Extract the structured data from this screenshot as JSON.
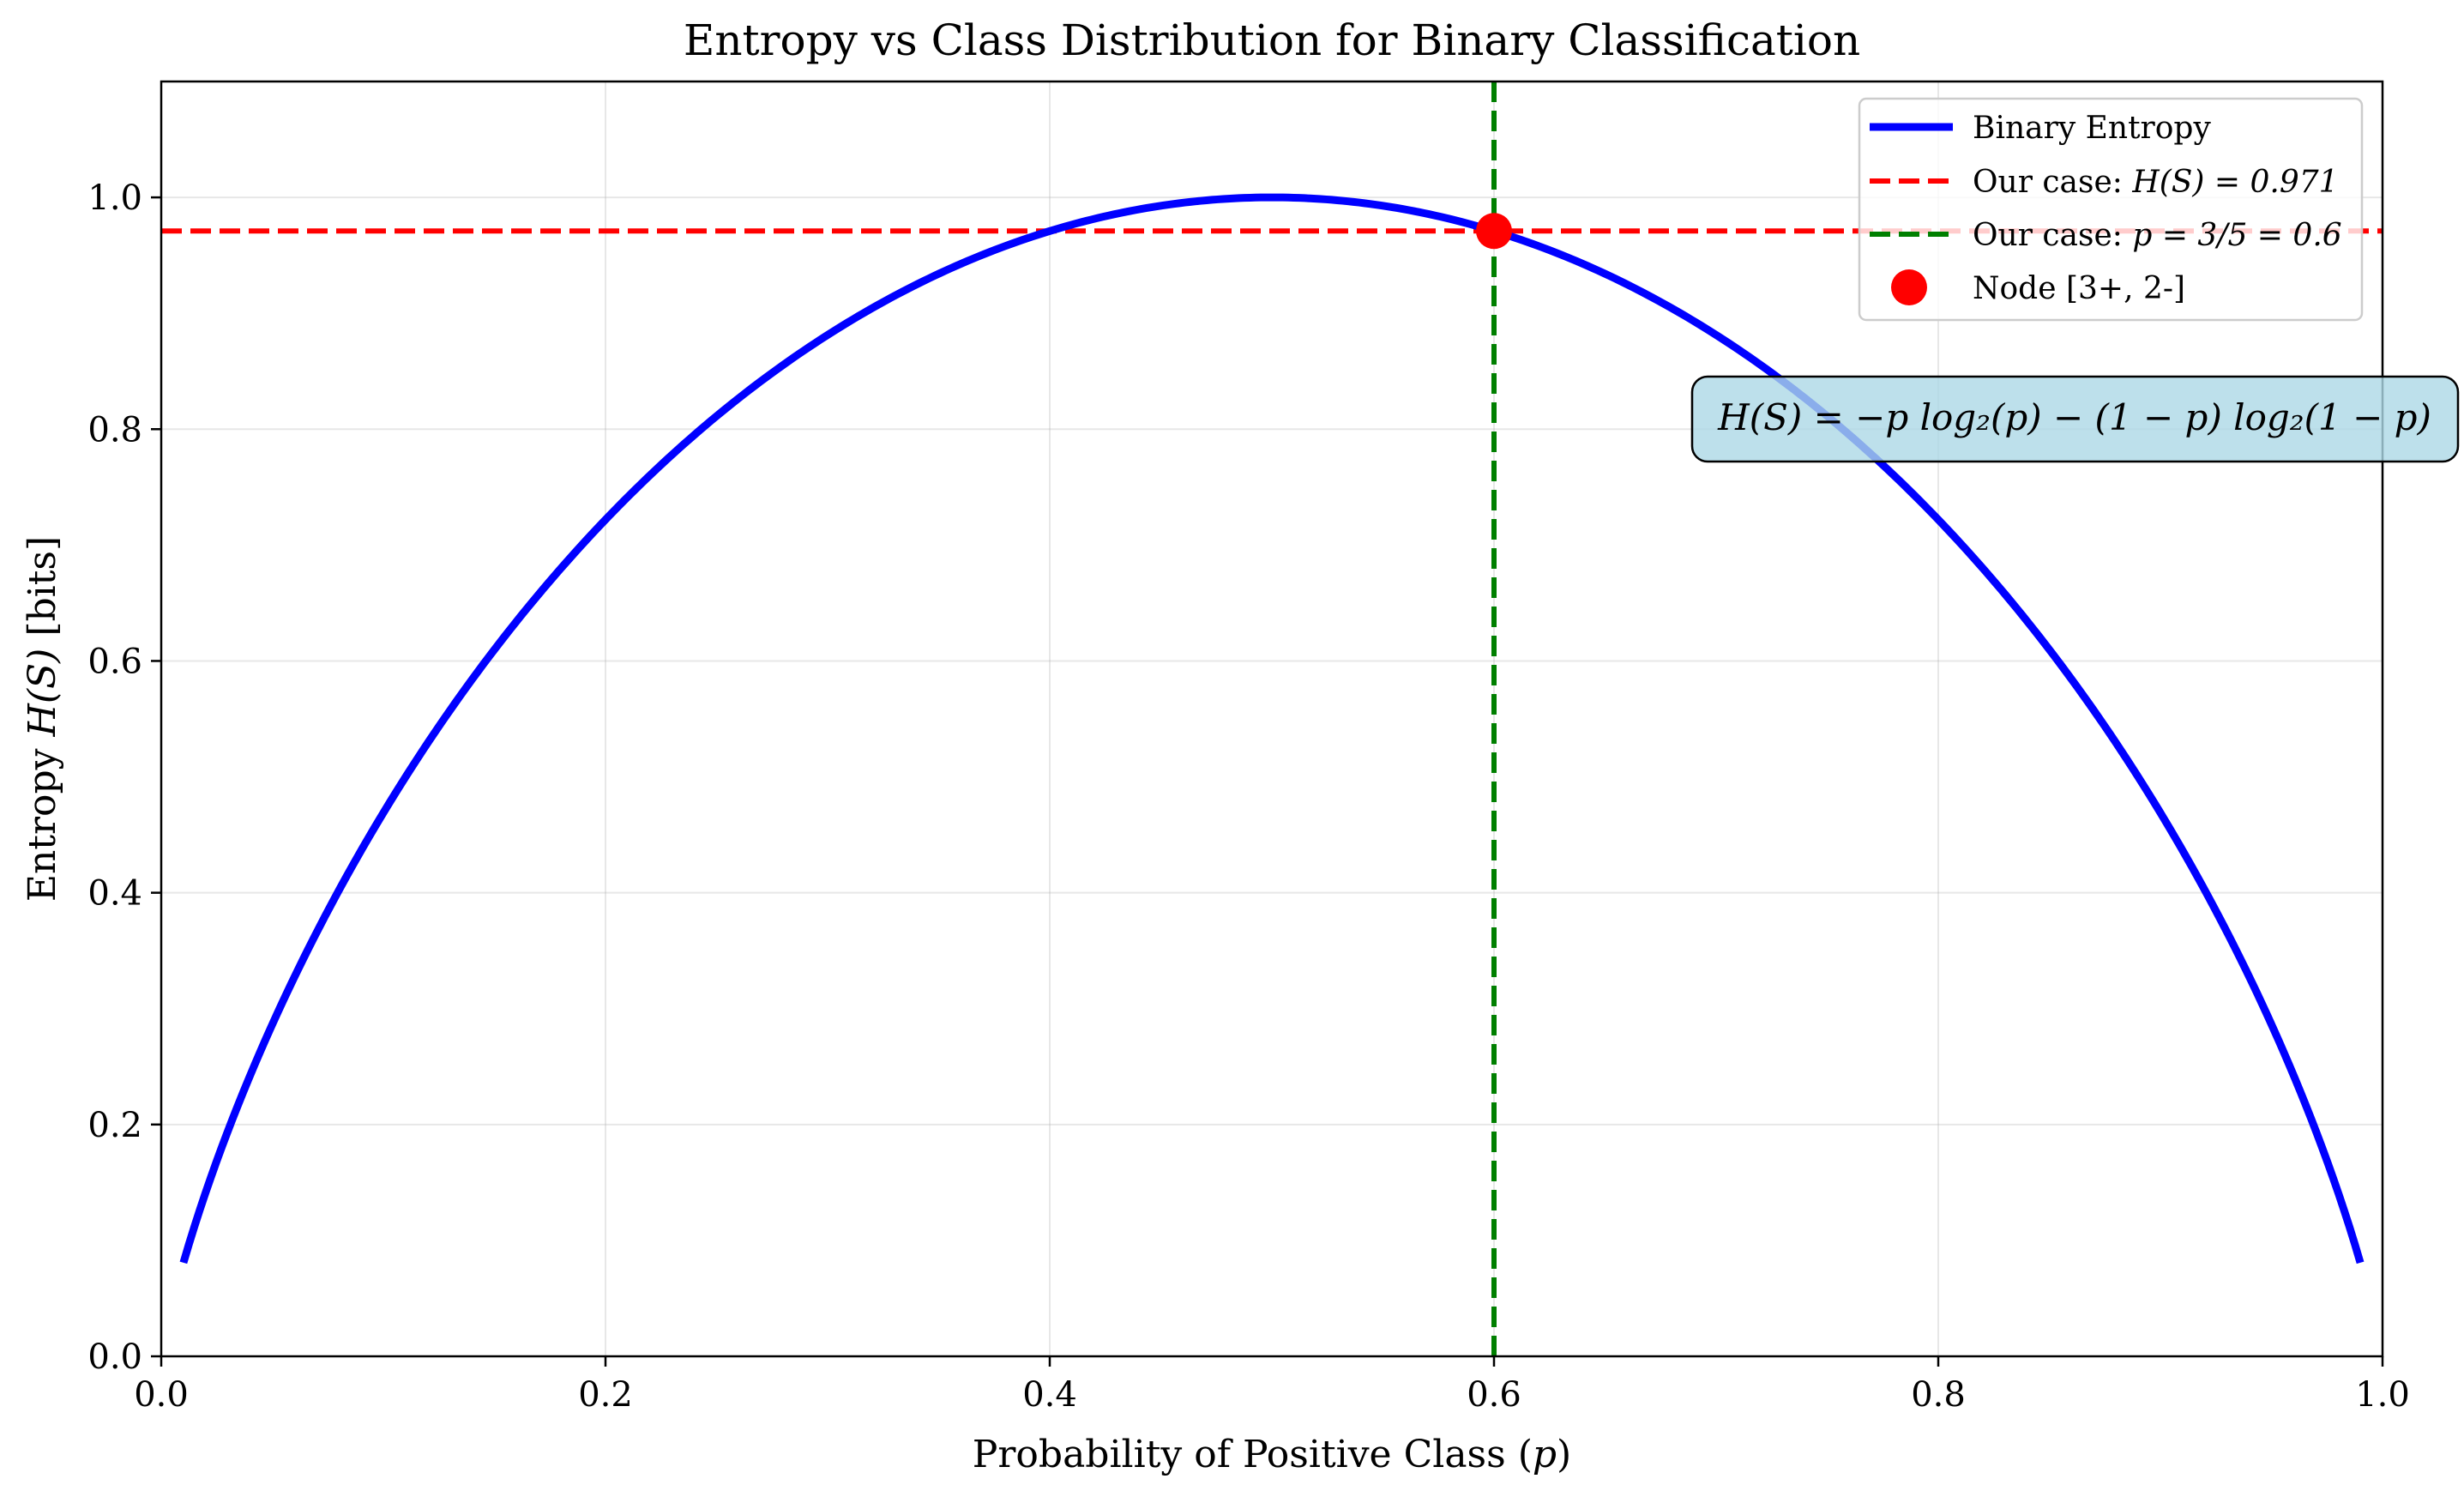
{
  "chart_data": {
    "type": "line",
    "title": "Entropy vs Class Distribution for Binary Classification",
    "xlabel": {
      "prefix": "Probability of Positive Class (",
      "var": "p",
      "suffix": ")"
    },
    "ylabel": {
      "prefix": "Entropy ",
      "var": "H(S)",
      "suffix": " [bits]"
    },
    "xlim": [
      0,
      1
    ],
    "ylim": [
      0,
      1.1
    ],
    "xticks": [
      0,
      0.2,
      0.4,
      0.6,
      0.8,
      1.0
    ],
    "xtick_labels": [
      "0.0",
      "0.2",
      "0.4",
      "0.6",
      "0.8",
      "1.0"
    ],
    "yticks": [
      0,
      0.2,
      0.4,
      0.6,
      0.8,
      1.0
    ],
    "ytick_labels": [
      "0.0",
      "0.2",
      "0.4",
      "0.6",
      "0.8",
      "1.0"
    ],
    "grid": true,
    "legend_position": "top-right",
    "series": [
      {
        "name": "Binary Entropy",
        "color": "#0000ff",
        "style": "solid",
        "function": "binary_entropy",
        "domain": [
          0.01,
          0.99
        ]
      }
    ],
    "reference_lines": [
      {
        "orientation": "horizontal",
        "y": 0.971,
        "color": "#ff0000",
        "style": "dashed",
        "legend_prefix": "Our case: ",
        "legend_math": "H(S) = 0.971"
      },
      {
        "orientation": "vertical",
        "x": 0.6,
        "color": "#007f00",
        "style": "dashed",
        "legend_prefix": "Our case: ",
        "legend_math": "p = 3/5 = 0.6"
      }
    ],
    "points": [
      {
        "name": "Node [3+, 2-]",
        "x": 0.6,
        "y": 0.971,
        "color": "#ff0000"
      }
    ],
    "annotation": {
      "text": "H(S) = −p log₂(p) − (1 − p) log₂(1 − p)",
      "x": 0.85,
      "y": 0.81,
      "box_color": "#add8e6"
    }
  }
}
